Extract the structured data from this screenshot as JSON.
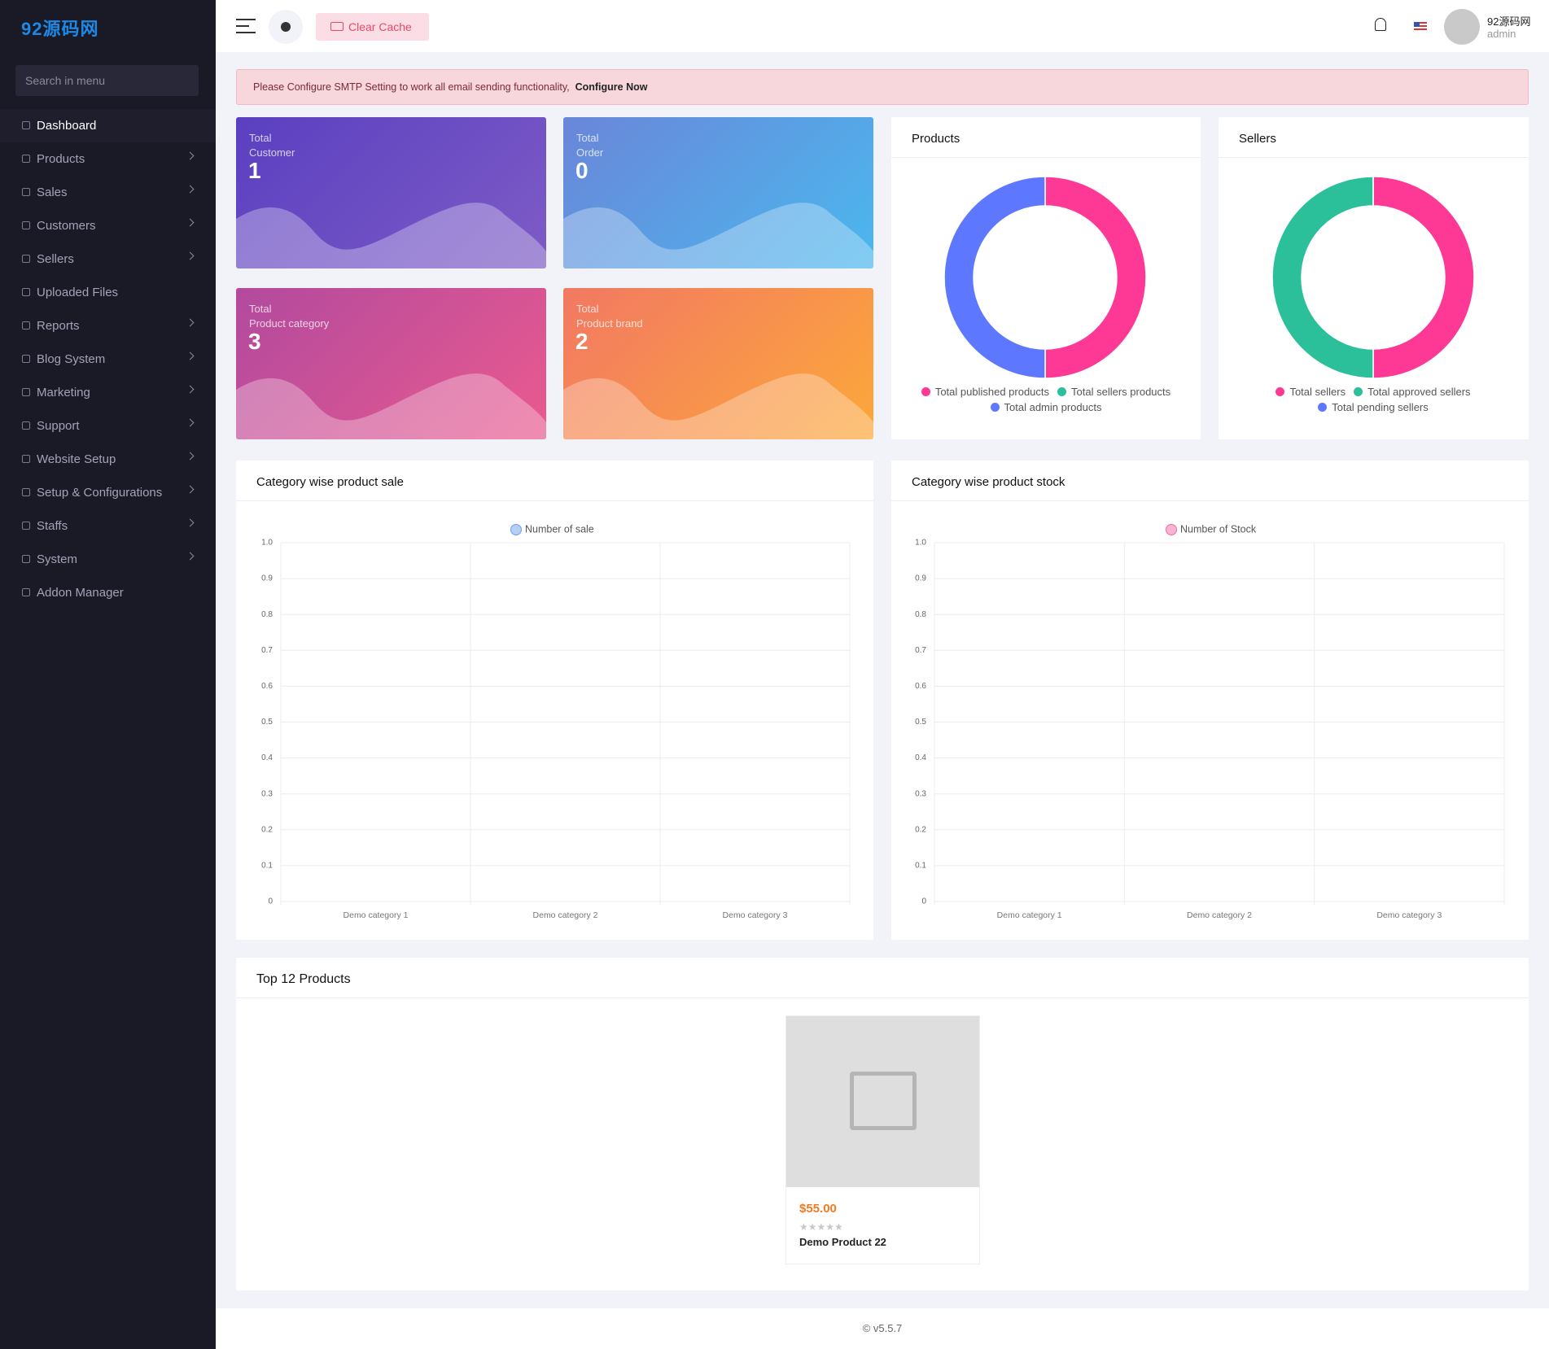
{
  "sidebar": {
    "logo": "92源码网",
    "search_placeholder": "Search in menu",
    "menu": [
      {
        "label": "Dashboard",
        "submenu": false
      },
      {
        "label": "Products",
        "submenu": true
      },
      {
        "label": "Sales",
        "submenu": true
      },
      {
        "label": "Customers",
        "submenu": true
      },
      {
        "label": "Sellers",
        "submenu": true
      },
      {
        "label": "Uploaded Files",
        "submenu": false
      },
      {
        "label": "Reports",
        "submenu": true
      },
      {
        "label": "Blog System",
        "submenu": true
      },
      {
        "label": "Marketing",
        "submenu": true
      },
      {
        "label": "Support",
        "submenu": true
      },
      {
        "label": "Website Setup",
        "submenu": true
      },
      {
        "label": "Setup & Configurations",
        "submenu": true
      },
      {
        "label": "Staffs",
        "submenu": true
      },
      {
        "label": "System",
        "submenu": true
      },
      {
        "label": "Addon Manager",
        "submenu": false
      }
    ]
  },
  "topbar": {
    "clear_cache": "Clear Cache",
    "user_name": "92源码网",
    "user_role": "admin"
  },
  "alert": {
    "message": "Please Configure SMTP Setting to work all email sending functionality,",
    "link": "Configure Now"
  },
  "stats": [
    {
      "line1": "Total",
      "line2": "Customer",
      "value": 1
    },
    {
      "line1": "Total",
      "line2": "Order",
      "value": 0
    },
    {
      "line1": "Total",
      "line2": "Product category",
      "value": 3
    },
    {
      "line1": "Total",
      "line2": "Product brand",
      "value": 2
    }
  ],
  "chart_data": [
    {
      "type": "doughnut",
      "title": "Products",
      "categories": [
        "Total published products",
        "Total sellers products",
        "Total admin products"
      ],
      "values": [
        1,
        0,
        1
      ],
      "colors": [
        "#fd3995",
        "#2bbf9a",
        "#5d78ff"
      ]
    },
    {
      "type": "doughnut",
      "title": "Sellers",
      "categories": [
        "Total sellers",
        "Total approved sellers",
        "Total pending sellers"
      ],
      "values": [
        1,
        1,
        0
      ],
      "colors": [
        "#fd3995",
        "#2bbf9a",
        "#5d78ff"
      ]
    },
    {
      "type": "bar",
      "title": "Category wise product sale",
      "categories": [
        "Demo category 1",
        "Demo category 2",
        "Demo category 3"
      ],
      "series": [
        {
          "name": "Number of sale",
          "color": "#6d9eeb",
          "values": [
            0,
            0,
            0
          ]
        }
      ],
      "ylim": [
        0,
        1
      ],
      "yticks": [
        0,
        0.1,
        0.2,
        0.3,
        0.4,
        0.5,
        0.6,
        0.7,
        0.8,
        0.9,
        {
          "value": 1,
          "label": "1.0"
        }
      ],
      "grid": true
    },
    {
      "type": "bar",
      "title": "Category wise product stock",
      "categories": [
        "Demo category 1",
        "Demo category 2",
        "Demo category 3"
      ],
      "series": [
        {
          "name": "Number of Stock",
          "color": "#f06aa8",
          "values": [
            0,
            0,
            0
          ]
        }
      ],
      "ylim": [
        0,
        1
      ],
      "yticks": [
        0,
        0.1,
        0.2,
        0.3,
        0.4,
        0.5,
        0.6,
        0.7,
        0.8,
        0.9,
        {
          "value": 1,
          "label": "1.0"
        }
      ],
      "grid": true
    }
  ],
  "top_products": {
    "title": "Top 12 Products",
    "items": [
      {
        "price": "$55.00",
        "name": "Demo Product 22"
      }
    ]
  },
  "footer": "© v5.5.7"
}
